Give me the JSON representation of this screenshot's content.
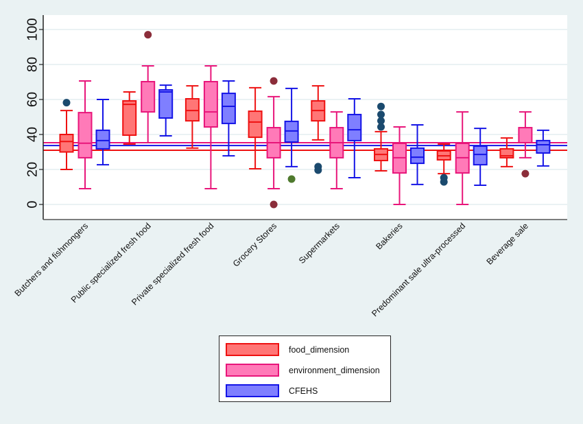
{
  "chart_data": {
    "type": "boxplot",
    "title": "",
    "xlabel": "",
    "ylabel": "",
    "ylim": [
      -8,
      108
    ],
    "yticks": [
      0,
      20,
      40,
      60,
      80,
      100
    ],
    "grid": true,
    "legend_position": "bottom-center",
    "categories": [
      "Butchers and fishmongers",
      "Public specialized fresh food",
      "Private specialized fresh food",
      "Grocery Stores",
      "Supermarkets",
      "Bakeries",
      "Predominant sale ultra-processed",
      "Beverage sale"
    ],
    "series": [
      {
        "name": "food_dimension",
        "fill": "#ff7676",
        "stroke": "#ee1111",
        "outlier_color": "#1b4a6e",
        "boxes": [
          {
            "low": 20,
            "q1": 30,
            "median": 36,
            "q3": 40,
            "high": 53.7,
            "outliers": [
              58.2
            ]
          },
          {
            "low": 34.5,
            "q1": 39.6,
            "median": 57.2,
            "q3": 59.2,
            "high": 64.3,
            "outliers": []
          },
          {
            "low": 32.2,
            "q1": 47.8,
            "median": 53.7,
            "q3": 60.4,
            "high": 67.8,
            "outliers": []
          },
          {
            "low": 20.4,
            "q1": 38.4,
            "median": 47.1,
            "q3": 53.3,
            "high": 66.7,
            "outliers": []
          },
          {
            "low": 36.9,
            "q1": 47.8,
            "median": 53.7,
            "q3": 59.2,
            "high": 67.8,
            "outliers": [
              21.6,
              19.6
            ]
          },
          {
            "low": 19.2,
            "q1": 25.1,
            "median": 28.6,
            "q3": 31.8,
            "high": 41.6,
            "outliers": [
              44.3,
              47.8,
              51.4,
              56
            ]
          },
          {
            "low": 17.6,
            "q1": 25.5,
            "median": 27.8,
            "q3": 30.6,
            "high": 34.5,
            "outliers": [
              15.3,
              12.9
            ]
          },
          {
            "low": 21.6,
            "q1": 26.7,
            "median": 27.8,
            "q3": 31.8,
            "high": 38,
            "outliers": []
          }
        ]
      },
      {
        "name": "environment_dimension",
        "fill": "#ff7ab8",
        "stroke": "#e8157a",
        "outlier_color": "#8b2d3a",
        "boxes": [
          {
            "low": 9,
            "q1": 26.7,
            "median": 35,
            "q3": 52.5,
            "high": 70.6,
            "outliers": []
          },
          {
            "low": 35.3,
            "q1": 52.9,
            "median": 70.2,
            "q3": 70.2,
            "high": 79.2,
            "outliers": [
              97
            ]
          },
          {
            "low": 9,
            "q1": 44.3,
            "median": 52.9,
            "q3": 70.2,
            "high": 79.2,
            "outliers": []
          },
          {
            "low": 9,
            "q1": 26.7,
            "median": 35.3,
            "q3": 43.9,
            "high": 61.6,
            "outliers": [
              70.6,
              0
            ]
          },
          {
            "low": 9,
            "q1": 26.7,
            "median": 35.3,
            "q3": 43.9,
            "high": 52.9,
            "outliers": []
          },
          {
            "low": 0,
            "q1": 18,
            "median": 26.7,
            "q3": 34.9,
            "high": 44.3,
            "outliers": []
          },
          {
            "low": 0,
            "q1": 18,
            "median": 26.7,
            "q3": 34.9,
            "high": 52.9,
            "outliers": []
          },
          {
            "low": 26.7,
            "q1": 35.3,
            "median": 35.3,
            "q3": 43.9,
            "high": 52.9,
            "outliers": [
              17.6
            ]
          }
        ]
      },
      {
        "name": "CFEHS",
        "fill": "#7f7fff",
        "stroke": "#1414e6",
        "outlier_color": "#4f7a2e",
        "boxes": [
          {
            "low": 22.7,
            "q1": 31.8,
            "median": 36.5,
            "q3": 42.4,
            "high": 60,
            "outliers": []
          },
          {
            "low": 39.2,
            "q1": 49.4,
            "median": 64.3,
            "q3": 65.5,
            "high": 68.2,
            "outliers": []
          },
          {
            "low": 27.8,
            "q1": 46.3,
            "median": 56.1,
            "q3": 63.5,
            "high": 70.6,
            "outliers": []
          },
          {
            "low": 21.6,
            "q1": 35.7,
            "median": 42,
            "q3": 47.5,
            "high": 66.3,
            "outliers": [
              14.5
            ]
          },
          {
            "low": 15.3,
            "q1": 36.5,
            "median": 42.7,
            "q3": 51.4,
            "high": 60.4,
            "outliers": []
          },
          {
            "low": 11.4,
            "q1": 23.5,
            "median": 27,
            "q3": 32.2,
            "high": 45.5,
            "outliers": []
          },
          {
            "low": 11,
            "q1": 22.7,
            "median": 28.6,
            "q3": 33.3,
            "high": 43.5,
            "outliers": []
          },
          {
            "low": 22,
            "q1": 29.4,
            "median": 34.1,
            "q3": 36.5,
            "high": 42.4,
            "outliers": []
          }
        ]
      }
    ],
    "reference_lines": [
      {
        "series": "environment_dimension",
        "value": 35.3,
        "color": "#e8157a"
      },
      {
        "series": "CFEHS",
        "value": 33.7,
        "color": "#1414e6"
      },
      {
        "series": "food_dimension",
        "value": 31,
        "color": "#ee1111"
      }
    ]
  },
  "legend": {
    "items": [
      {
        "label": "food_dimension",
        "fill": "#ff7676",
        "stroke": "#ee1111"
      },
      {
        "label": "environment_dimension",
        "fill": "#ff7ab8",
        "stroke": "#e8157a"
      },
      {
        "label": "CFEHS",
        "fill": "#7f7fff",
        "stroke": "#1414e6"
      }
    ]
  }
}
